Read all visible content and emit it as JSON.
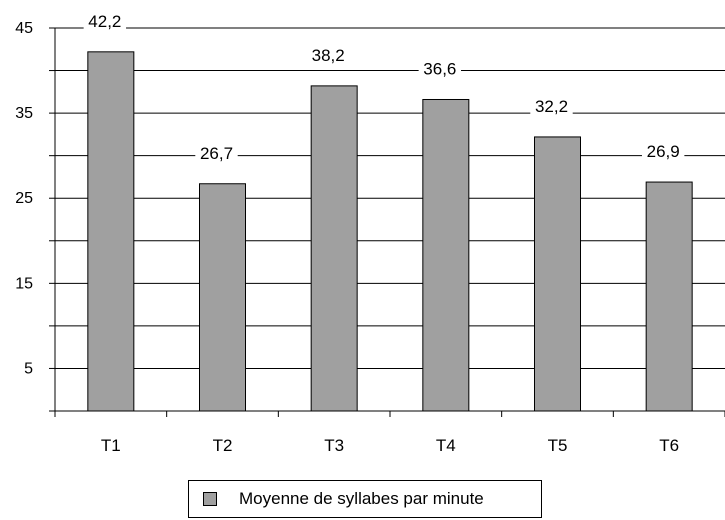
{
  "chart_data": {
    "type": "bar",
    "categories": [
      "T1",
      "T2",
      "T3",
      "T4",
      "T5",
      "T6"
    ],
    "series": [
      {
        "name": "Moyenne de syllabes par minute",
        "values": [
          42.2,
          26.7,
          38.2,
          36.6,
          32.2,
          26.9
        ]
      }
    ],
    "data_labels": [
      "42,2",
      "26,7",
      "38,2",
      "36,6",
      "32,2",
      "26,9"
    ],
    "ylim": [
      0,
      45
    ],
    "yticks": [
      5,
      15,
      25,
      35,
      45
    ],
    "ytick_labels": [
      "5",
      "15",
      "25",
      "35",
      "45"
    ],
    "gridlines": [
      5,
      10,
      15,
      20,
      25,
      30,
      35,
      40,
      45
    ],
    "grid": true,
    "legend": "bottom",
    "title": "",
    "xlabel": "",
    "ylabel": "",
    "colors": {
      "bar": "#a0a0a0",
      "bar_stroke": "#000000",
      "grid": "#000000"
    }
  }
}
